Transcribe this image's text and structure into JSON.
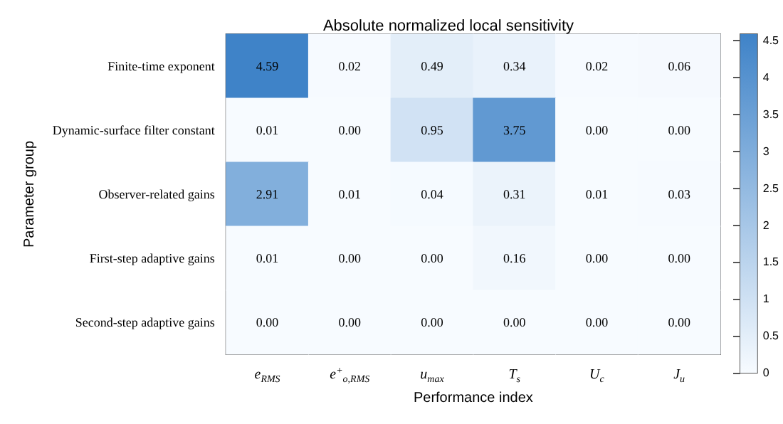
{
  "chart_data": {
    "type": "heatmap",
    "title": "Absolute normalized local sensitivity",
    "xlabel": "Performance index",
    "ylabel": "Parameter group",
    "categories": [
      "e$_{RMS}$",
      "e$^{+}$$_{o,RMS}$",
      "u$_{max}$",
      "T$_{s}$",
      "U$_{c}$",
      "J$_{u}$"
    ],
    "y_categories": [
      "Finite-time exponent",
      "Dynamic-surface filter constant",
      "Observer-related gains",
      "First-step adaptive gains",
      "Second-step adaptive gains"
    ],
    "cells": [
      [
        4.59,
        0.02,
        0.49,
        0.34,
        0.02,
        0.06
      ],
      [
        0.01,
        0.0,
        0.95,
        3.75,
        0.0,
        0.0
      ],
      [
        2.91,
        0.01,
        0.04,
        0.31,
        0.01,
        0.03
      ],
      [
        0.01,
        0.0,
        0.0,
        0.16,
        0.0,
        0.0
      ],
      [
        0.0,
        0.0,
        0.0,
        0.0,
        0.0,
        0.0
      ]
    ],
    "cell_labels": [
      [
        "4.59",
        "0.02",
        "0.49",
        "0.34",
        "0.02",
        "0.06"
      ],
      [
        "0.01",
        "0.00",
        "0.95",
        "3.75",
        "0.00",
        "0.00"
      ],
      [
        "2.91",
        "0.01",
        "0.04",
        "0.31",
        "0.01",
        "0.03"
      ],
      [
        "0.01",
        "0.00",
        "0.00",
        "0.16",
        "0.00",
        "0.00"
      ],
      [
        "0.00",
        "0.00",
        "0.00",
        "0.00",
        "0.00",
        "0.00"
      ]
    ],
    "clim": [
      0,
      4.59
    ],
    "cticks": [
      0,
      0.5,
      1,
      1.5,
      2,
      2.5,
      3,
      3.5,
      4,
      4.5
    ],
    "colors": [
      "#f7fbff",
      "#3f83c8"
    ]
  }
}
